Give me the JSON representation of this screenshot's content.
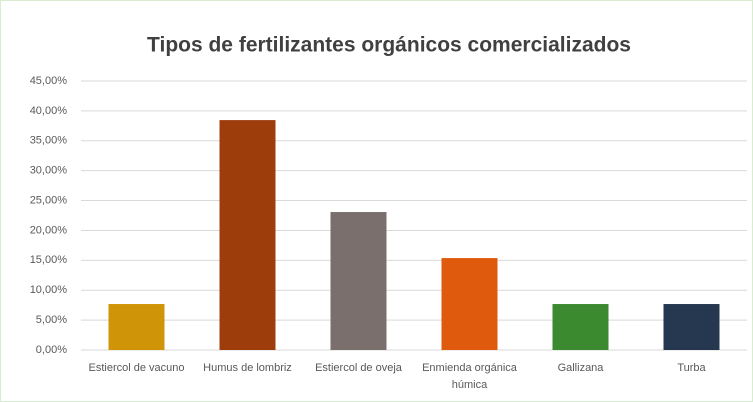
{
  "chart_data": {
    "type": "bar",
    "title": "Tipos de fertilizantes orgánicos comercializados",
    "categories": [
      "Estiercol de vacuno",
      "Humus de lombriz",
      "Estiercol de oveja",
      "Enmienda orgánica húmica",
      "Gallizana",
      "Turba"
    ],
    "values": [
      7.69,
      38.46,
      23.08,
      15.38,
      7.69,
      7.69
    ],
    "colors": [
      "#cf9408",
      "#9c3d0b",
      "#7b6f6e",
      "#e05a0d",
      "#3b8a2f",
      "#26384f"
    ],
    "ylim": [
      0,
      45
    ],
    "yticks": [
      {
        "value": 0,
        "label": "0,00%"
      },
      {
        "value": 5,
        "label": "5,00%"
      },
      {
        "value": 10,
        "label": "10,00%"
      },
      {
        "value": 15,
        "label": "15,00%"
      },
      {
        "value": 20,
        "label": "20,00%"
      },
      {
        "value": 25,
        "label": "25,00%"
      },
      {
        "value": 30,
        "label": "30,00%"
      },
      {
        "value": 35,
        "label": "35,00%"
      },
      {
        "value": 40,
        "label": "40,00%"
      },
      {
        "value": 45,
        "label": "45,00%"
      }
    ],
    "grid": true
  }
}
